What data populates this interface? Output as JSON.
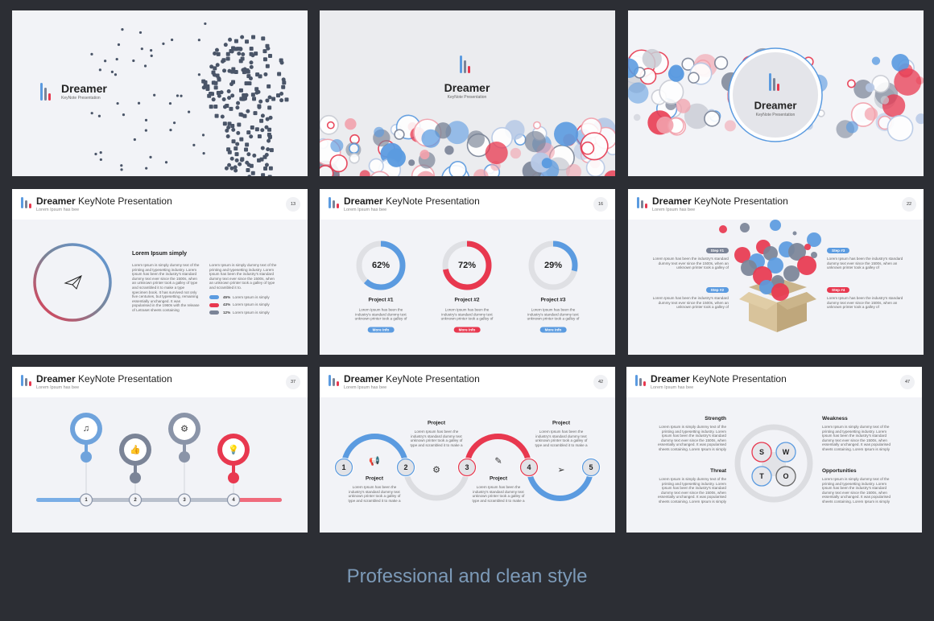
{
  "colors": {
    "blue": "#5b9be0",
    "red": "#e8384f",
    "gray": "#7b8497",
    "light": "#dfe0e4",
    "background": "#2c2e34",
    "caption": "#7c9ab8"
  },
  "brand": {
    "name": "Dreamer",
    "tagline": "KeyNote Presentation"
  },
  "header": {
    "brand": "Dreamer",
    "title_rest": " KeyNote Presentation",
    "subtitle": "Lorem Ipsum has bee"
  },
  "caption": "Professional and clean style",
  "slide13": {
    "page": "13",
    "heading": "Lorem Ipsum simply",
    "icon": "paper-plane-icon",
    "para1": "Lorem Ipsum is simply dummy text of the printing and typesetting industry. Lorem Ipsum has been the industry's standard dummy text ever since the 1500s, when an unknown printer took a galley of type and scrambled it to make a type specimen book. It has survived not only five centuries, but typesetting, remaining essentially unchanged. It was popularised in the 1960s with the release of Letraset sheets containing",
    "para2": "Lorem Ipsum is simply dummy text of the printing and typesetting industry. Lorem Ipsum has been the industry's standard dummy text ever since the 1500s, when an unknown printer took a galley of type and scrambled it to.",
    "legend": [
      {
        "pct": "45%",
        "label": "Lorem Ipsum is simply",
        "color": "#5b9be0",
        "value": 45
      },
      {
        "pct": "43%",
        "label": "Lorem Ipsum is simply",
        "color": "#e8384f",
        "value": 43
      },
      {
        "pct": "12%",
        "label": "Lorem Ipsum is simply",
        "color": "#7b8497",
        "value": 12
      }
    ]
  },
  "slide16": {
    "page": "16",
    "projects": [
      {
        "pct": "62%",
        "value": 62,
        "label": "Project #1",
        "text": "Lorem Ipsum has been the industry's standard dummy text unknown printer took a galley of",
        "button": "More info",
        "color": "#5b9be0"
      },
      {
        "pct": "72%",
        "value": 72,
        "label": "Project #2",
        "text": "Lorem Ipsum has been the industry's standard dummy text unknown printer took a galley of",
        "button": "More info",
        "color": "#e8384f"
      },
      {
        "pct": "29%",
        "value": 29,
        "label": "Project #3",
        "text": "Lorem Ipsum has been the industry's standard dummy text unknown printer took a galley of",
        "button": "More info",
        "color": "#5b9be0"
      }
    ]
  },
  "slide22": {
    "page": "22",
    "steps": [
      {
        "label": "Step #1",
        "text": "Lorem Ipsum has been the industry's standard dummy text ever since the 1500s, when an unknown printer took a galley of",
        "color": "#7b8497"
      },
      {
        "label": "Step #2",
        "text": "Lorem Ipsum has been the industry's standard dummy text ever since the 1500s, when an unknown printer took a galley of",
        "color": "#5b9be0"
      },
      {
        "label": "Step #3",
        "text": "Lorem Ipsum has been the industry's standard dummy text ever since the 1500s, when an unknown printer took a galley of",
        "color": "#5b9be0"
      },
      {
        "label": "Step #4",
        "text": "Lorem Ipsum has been the industry's standard dummy text ever since the 1500s, when an unknown printer took a galley of",
        "color": "#e8384f"
      }
    ]
  },
  "slide37": {
    "page": "37",
    "markers": [
      {
        "num": "1",
        "icon": "music-note-icon",
        "glyph": "♫",
        "color": "#6fa3dc"
      },
      {
        "num": "2",
        "icon": "thumbs-up-icon",
        "glyph": "👍",
        "color": "#7b8497"
      },
      {
        "num": "3",
        "icon": "gear-icon",
        "glyph": "⚙",
        "color": "#8a94a8"
      },
      {
        "num": "4",
        "icon": "lightbulb-icon",
        "glyph": "💡",
        "color": "#e8384f"
      }
    ]
  },
  "slide42": {
    "page": "42",
    "nums": [
      "1",
      "2",
      "3",
      "4",
      "5"
    ],
    "projects": [
      {
        "label": "Project",
        "text": "Lorem Ipsum has been the industry's standard dummy text unknown printer took a galley of type and scrambled it to make a"
      },
      {
        "label": "Project",
        "text": "Lorem Ipsum has been the industry's standard dummy text unknown printer took a galley of type and scrambled it to make a"
      },
      {
        "label": "Project",
        "text": "Lorem Ipsum has been the industry's standard dummy text unknown printer took a galley of type and scrambled it to make a"
      },
      {
        "label": "Project",
        "text": "Lorem Ipsum has been the industry's standard dummy text unknown printer took a galley of type and scrambled it to make a"
      }
    ],
    "icons": [
      "megaphone-icon",
      "gear-icon",
      "pencil-icon",
      "paper-plane-icon"
    ]
  },
  "slide47": {
    "page": "47",
    "letters": [
      "S",
      "W",
      "T",
      "O"
    ],
    "quadrants": [
      {
        "label": "Strength",
        "text": "Lorem Ipsum is simply dummy text of the printing and typesetting industry. Lorem Ipsum has been the industry's standard dummy text ever since the 1500s, when essentially unchanged. It was popularised sheets containing. Lorem Ipsum is simply"
      },
      {
        "label": "Weakness",
        "text": "Lorem Ipsum is simply dummy text of the printing and typesetting industry. Lorem Ipsum has been the industry's standard dummy text ever since the 1500s, when essentially unchanged. It was popularised sheets containing. Lorem Ipsum is simply"
      },
      {
        "label": "Threat",
        "text": "Lorem Ipsum is simply dummy text of the printing and typesetting industry. Lorem Ipsum has been the industry's standard dummy text ever since the 1500s, when essentially unchanged. It was popularised sheets containing. Lorem Ipsum is simply"
      },
      {
        "label": "Opportunities",
        "text": "Lorem Ipsum is simply dummy text of the printing and typesetting industry. Lorem Ipsum has been the industry's standard dummy text ever since the 1500s, when essentially unchanged. It was popularised sheets containing. Lorem Ipsum is simply"
      }
    ]
  }
}
